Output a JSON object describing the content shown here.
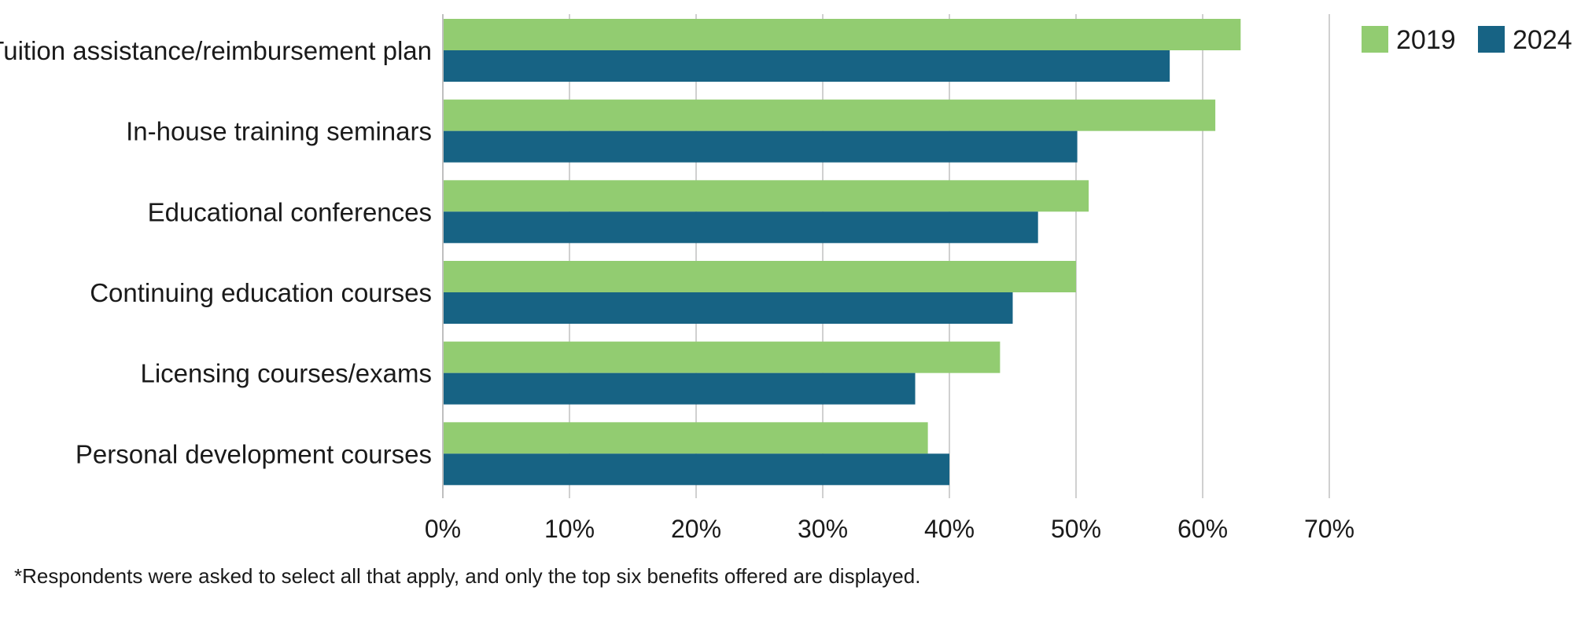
{
  "chart_data": {
    "type": "bar",
    "orientation": "horizontal",
    "categories": [
      "Tuition assistance/reimbursement plan",
      "In-house training seminars",
      "Educational conferences",
      "Continuing education courses",
      "Licensing courses/exams",
      "Personal development courses"
    ],
    "series": [
      {
        "name": "2019",
        "color": "#92CC71",
        "values": [
          63,
          61,
          51,
          50,
          44,
          38.3
        ]
      },
      {
        "name": "2024",
        "color": "#176384",
        "values": [
          57.4,
          50.1,
          47,
          45,
          37.3,
          40
        ]
      }
    ],
    "xlim": [
      0,
      70
    ],
    "xticks": [
      0,
      10,
      20,
      30,
      40,
      50,
      60,
      70
    ],
    "tick_labels": [
      "0%",
      "10%",
      "20%",
      "30%",
      "40%",
      "50%",
      "60%",
      "70%"
    ],
    "grid": true,
    "legend_position": "top-right",
    "title": "",
    "xlabel": "",
    "ylabel": ""
  },
  "footnote": "*Respondents were asked to select all that apply, and only the top six benefits offered are displayed."
}
